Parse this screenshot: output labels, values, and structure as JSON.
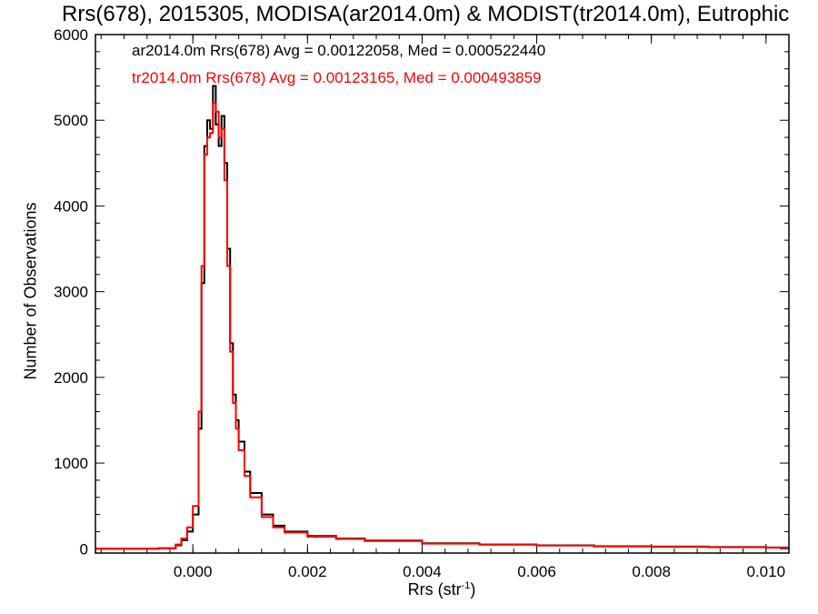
{
  "chart_data": {
    "type": "line",
    "title": "Rrs(678), 2015305, MODISA(ar2014.0m) & MODIST(tr2014.0m), Eutrophic",
    "xlabel_main": "Rrs (str",
    "xlabel_sup": "-1",
    "xlabel_end": ")",
    "ylabel": "Number of Observations",
    "xlim": [
      -0.0017,
      0.0104
    ],
    "ylim": [
      -50,
      6000
    ],
    "xticks": [
      0.0,
      0.002,
      0.004,
      0.006,
      0.008,
      0.01
    ],
    "xtick_labels": [
      "0.000",
      "0.002",
      "0.004",
      "0.006",
      "0.008",
      "0.010"
    ],
    "yticks": [
      0,
      1000,
      2000,
      3000,
      4000,
      5000,
      6000
    ],
    "ytick_labels": [
      "0",
      "1000",
      "2000",
      "3000",
      "4000",
      "5000",
      "6000"
    ],
    "legend": [
      "ar2014.0m Rrs(678) Avg = 0.00122058, Med = 0.000522440",
      "tr2014.0m Rrs(678) Avg = 0.00123165, Med = 0.000493859"
    ],
    "series": [
      {
        "color": "#000000",
        "x": [
          -0.0017,
          -0.0006,
          -0.0003,
          -0.0002,
          -0.0001,
          0.0,
          0.0001,
          0.00015,
          0.0002,
          0.00025,
          0.0003,
          0.00035,
          0.0004,
          0.00045,
          0.0005,
          0.00055,
          0.0006,
          0.00065,
          0.0007,
          0.00075,
          0.0008,
          0.0009,
          0.001,
          0.0012,
          0.0014,
          0.0016,
          0.002,
          0.0025,
          0.003,
          0.004,
          0.005,
          0.006,
          0.007,
          0.008,
          0.009,
          0.01,
          0.0104
        ],
        "y": [
          0,
          5,
          40,
          100,
          200,
          400,
          1400,
          3100,
          4700,
          5000,
          4900,
          5400,
          4950,
          4700,
          5050,
          4500,
          3500,
          2400,
          1800,
          1500,
          1250,
          900,
          650,
          400,
          270,
          200,
          150,
          120,
          95,
          65,
          50,
          40,
          30,
          25,
          20,
          15,
          12
        ]
      },
      {
        "color": "#ff0000",
        "x": [
          -0.0017,
          -0.0006,
          -0.0003,
          -0.0002,
          -0.0001,
          0.0,
          0.0001,
          0.00015,
          0.0002,
          0.00025,
          0.0003,
          0.00035,
          0.0004,
          0.00045,
          0.0005,
          0.00055,
          0.0006,
          0.00065,
          0.0007,
          0.00075,
          0.0008,
          0.0009,
          0.001,
          0.0012,
          0.0014,
          0.0016,
          0.002,
          0.0025,
          0.003,
          0.004,
          0.005,
          0.006,
          0.007,
          0.008,
          0.009,
          0.01,
          0.0104
        ],
        "y": [
          0,
          5,
          50,
          120,
          250,
          500,
          1600,
          3300,
          4600,
          4800,
          4850,
          5200,
          5100,
          4800,
          4900,
          4300,
          3300,
          2300,
          1700,
          1400,
          1150,
          850,
          600,
          370,
          250,
          190,
          140,
          115,
          90,
          60,
          48,
          38,
          28,
          22,
          18,
          13,
          10
        ]
      }
    ]
  }
}
